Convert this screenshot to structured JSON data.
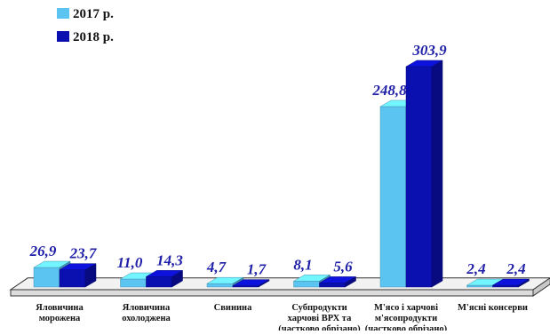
{
  "chart_data": {
    "type": "bar",
    "style": "3d-grouped",
    "categories": [
      [
        "Яловичина",
        "морожена"
      ],
      [
        "Яловичина",
        "охолоджена"
      ],
      [
        "Свинина"
      ],
      [
        "Субпродукти",
        "харчові ВРХ та",
        "(частково обрізано)"
      ],
      [
        "М'ясо і харчові",
        "м'ясопродукти",
        "(частково обрізано)"
      ],
      [
        "М'ясні консерви"
      ]
    ],
    "series": [
      {
        "name": "2017 р.",
        "color": "#5cc4f0",
        "values": [
          26.9,
          11.0,
          4.7,
          8.1,
          248.8,
          2.4
        ],
        "labels": [
          "26,9",
          "11,0",
          "4,7",
          "8,1",
          "248,8",
          "2,4"
        ]
      },
      {
        "name": "2018 р.",
        "color": "#0a0fb0",
        "values": [
          23.7,
          14.3,
          1.7,
          5.6,
          303.9,
          2.4
        ],
        "labels": [
          "23,7",
          "14,3",
          "1,7",
          "5,6",
          "303,9",
          "2,4"
        ]
      }
    ],
    "legend": {
      "position": "top-left",
      "entries": [
        "2017 р.",
        "2018 р."
      ]
    },
    "title": "",
    "xlabel": "",
    "ylabel": "",
    "ylim": [
      0,
      310
    ],
    "grid": false,
    "floor_color": "#ffffff",
    "floor_stroke": "#333333",
    "label_color": "#1f1fa8"
  }
}
